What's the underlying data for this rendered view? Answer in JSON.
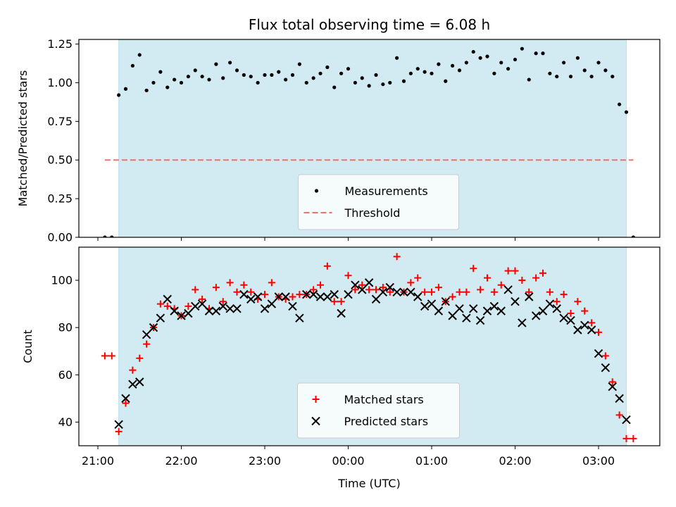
{
  "chart_data": [
    {
      "type": "scatter",
      "title": "Flux total observing time = 6.08 h",
      "ylabel": "Matched/Predicted stars",
      "xlabel": "",
      "ylim": [
        0,
        1.28
      ],
      "yticks": [
        "0.00",
        "0.25",
        "0.50",
        "0.75",
        "1.00",
        "1.25"
      ],
      "ytick_values": [
        0,
        0.25,
        0.5,
        0.75,
        1.0,
        1.25
      ],
      "shaded_span": [
        "21:15",
        "03:20"
      ],
      "threshold": {
        "name": "Threshold",
        "value": 0.5,
        "x_range": [
          "21:05",
          "03:25"
        ],
        "color": "#f07070"
      },
      "legend_position": "lower center",
      "series": [
        {
          "name": "Measurements",
          "marker": "dot",
          "color": "#000000",
          "x": [
            "21:05",
            "21:10",
            "21:15",
            "21:20",
            "21:25",
            "21:30",
            "21:35",
            "21:40",
            "21:45",
            "21:50",
            "21:55",
            "22:00",
            "22:05",
            "22:10",
            "22:15",
            "22:20",
            "22:25",
            "22:30",
            "22:35",
            "22:40",
            "22:45",
            "22:50",
            "22:55",
            "23:00",
            "23:05",
            "23:10",
            "23:15",
            "23:20",
            "23:25",
            "23:30",
            "23:35",
            "23:40",
            "23:45",
            "23:50",
            "23:55",
            "00:00",
            "00:05",
            "00:10",
            "00:15",
            "00:20",
            "00:25",
            "00:30",
            "00:35",
            "00:40",
            "00:45",
            "00:50",
            "00:55",
            "01:00",
            "01:05",
            "01:10",
            "01:15",
            "01:20",
            "01:25",
            "01:30",
            "01:35",
            "01:40",
            "01:45",
            "01:50",
            "01:55",
            "02:00",
            "02:05",
            "02:10",
            "02:15",
            "02:20",
            "02:25",
            "02:30",
            "02:35",
            "02:40",
            "02:45",
            "02:50",
            "02:55",
            "03:00",
            "03:05",
            "03:10",
            "03:15",
            "03:20",
            "03:25"
          ],
          "y": [
            0.0,
            0.0,
            0.92,
            0.96,
            1.11,
            1.18,
            0.95,
            1.0,
            1.07,
            0.97,
            1.02,
            1.0,
            1.04,
            1.08,
            1.04,
            1.02,
            1.12,
            1.03,
            1.13,
            1.08,
            1.05,
            1.04,
            1.0,
            1.05,
            1.05,
            1.07,
            1.02,
            1.05,
            1.12,
            1.0,
            1.03,
            1.06,
            1.1,
            0.97,
            1.06,
            1.09,
            1.0,
            1.03,
            0.98,
            1.05,
            0.99,
            1.0,
            1.16,
            1.01,
            1.06,
            1.09,
            1.07,
            1.06,
            1.12,
            1.01,
            1.11,
            1.08,
            1.13,
            1.2,
            1.16,
            1.17,
            1.06,
            1.13,
            1.09,
            1.15,
            1.22,
            1.02,
            1.19,
            1.19,
            1.06,
            1.04,
            1.13,
            1.04,
            1.16,
            1.08,
            1.04,
            1.13,
            1.08,
            1.04,
            0.86,
            0.81,
            0.0
          ]
        }
      ]
    },
    {
      "type": "scatter",
      "title": "",
      "ylabel": "Count",
      "xlabel": "Time (UTC)",
      "ylim": [
        30,
        114
      ],
      "yticks": [
        "40",
        "60",
        "80",
        "100"
      ],
      "ytick_values": [
        40,
        60,
        80,
        100
      ],
      "xticks": [
        "21:00",
        "22:00",
        "23:00",
        "00:00",
        "01:00",
        "02:00",
        "03:00"
      ],
      "shaded_span": [
        "21:15",
        "03:20"
      ],
      "legend_position": "lower center",
      "series": [
        {
          "name": "Matched stars",
          "marker": "plus",
          "color": "#ff0000",
          "x": [
            "21:05",
            "21:10",
            "21:15",
            "21:20",
            "21:25",
            "21:30",
            "21:35",
            "21:40",
            "21:45",
            "21:50",
            "21:55",
            "22:00",
            "22:05",
            "22:10",
            "22:15",
            "22:20",
            "22:25",
            "22:30",
            "22:35",
            "22:40",
            "22:45",
            "22:50",
            "22:55",
            "23:00",
            "23:05",
            "23:10",
            "23:15",
            "23:20",
            "23:25",
            "23:30",
            "23:35",
            "23:40",
            "23:45",
            "23:50",
            "23:55",
            "00:00",
            "00:05",
            "00:10",
            "00:15",
            "00:20",
            "00:25",
            "00:30",
            "00:35",
            "00:40",
            "00:45",
            "00:50",
            "00:55",
            "01:00",
            "01:05",
            "01:10",
            "01:15",
            "01:20",
            "01:25",
            "01:30",
            "01:35",
            "01:40",
            "01:45",
            "01:50",
            "01:55",
            "02:00",
            "02:05",
            "02:10",
            "02:15",
            "02:20",
            "02:25",
            "02:30",
            "02:35",
            "02:40",
            "02:45",
            "02:50",
            "02:55",
            "03:00",
            "03:05",
            "03:10",
            "03:15",
            "03:20",
            "03:25"
          ],
          "y": [
            68,
            68,
            36,
            48,
            62,
            67,
            73,
            80,
            90,
            89,
            88,
            85,
            89,
            96,
            92,
            88,
            97,
            91,
            99,
            95,
            98,
            95,
            92,
            94,
            99,
            93,
            92,
            93,
            94,
            94,
            96,
            98,
            106,
            91,
            91,
            102,
            96,
            98,
            96,
            96,
            97,
            95,
            110,
            95,
            99,
            101,
            95,
            95,
            97,
            91,
            93,
            95,
            95,
            105,
            96,
            101,
            95,
            98,
            104,
            104,
            100,
            95,
            101,
            103,
            95,
            91,
            94,
            86,
            91,
            87,
            82,
            78,
            68,
            57,
            43,
            33,
            33
          ]
        },
        {
          "name": "Predicted stars",
          "marker": "x",
          "color": "#000000",
          "x": [
            "21:15",
            "21:20",
            "21:25",
            "21:30",
            "21:35",
            "21:40",
            "21:45",
            "21:50",
            "21:55",
            "22:00",
            "22:05",
            "22:10",
            "22:15",
            "22:20",
            "22:25",
            "22:30",
            "22:35",
            "22:40",
            "22:45",
            "22:50",
            "22:55",
            "23:00",
            "23:05",
            "23:10",
            "23:15",
            "23:20",
            "23:25",
            "23:30",
            "23:35",
            "23:40",
            "23:45",
            "23:50",
            "23:55",
            "00:00",
            "00:05",
            "00:10",
            "00:15",
            "00:20",
            "00:25",
            "00:30",
            "00:35",
            "00:40",
            "00:45",
            "00:50",
            "00:55",
            "01:00",
            "01:05",
            "01:10",
            "01:15",
            "01:20",
            "01:25",
            "01:30",
            "01:35",
            "01:40",
            "01:45",
            "01:50",
            "01:55",
            "02:00",
            "02:05",
            "02:10",
            "02:15",
            "02:20",
            "02:25",
            "02:30",
            "02:35",
            "02:40",
            "02:45",
            "02:50",
            "02:55",
            "03:00",
            "03:05",
            "03:10",
            "03:15",
            "03:20"
          ],
          "y": [
            39,
            50,
            56,
            57,
            77,
            80,
            84,
            92,
            87,
            85,
            86,
            89,
            90,
            87,
            87,
            89,
            88,
            88,
            94,
            92,
            93,
            88,
            90,
            93,
            93,
            89,
            84,
            94,
            94,
            93,
            93,
            94,
            86,
            94,
            98,
            96,
            99,
            92,
            95,
            97,
            95,
            95,
            95,
            93,
            89,
            90,
            87,
            91,
            85,
            88,
            84,
            88,
            83,
            87,
            89,
            87,
            96,
            91,
            82,
            93,
            85,
            87,
            90,
            88,
            84,
            83,
            79,
            81,
            79,
            69,
            63,
            55,
            50,
            41
          ]
        }
      ]
    }
  ]
}
